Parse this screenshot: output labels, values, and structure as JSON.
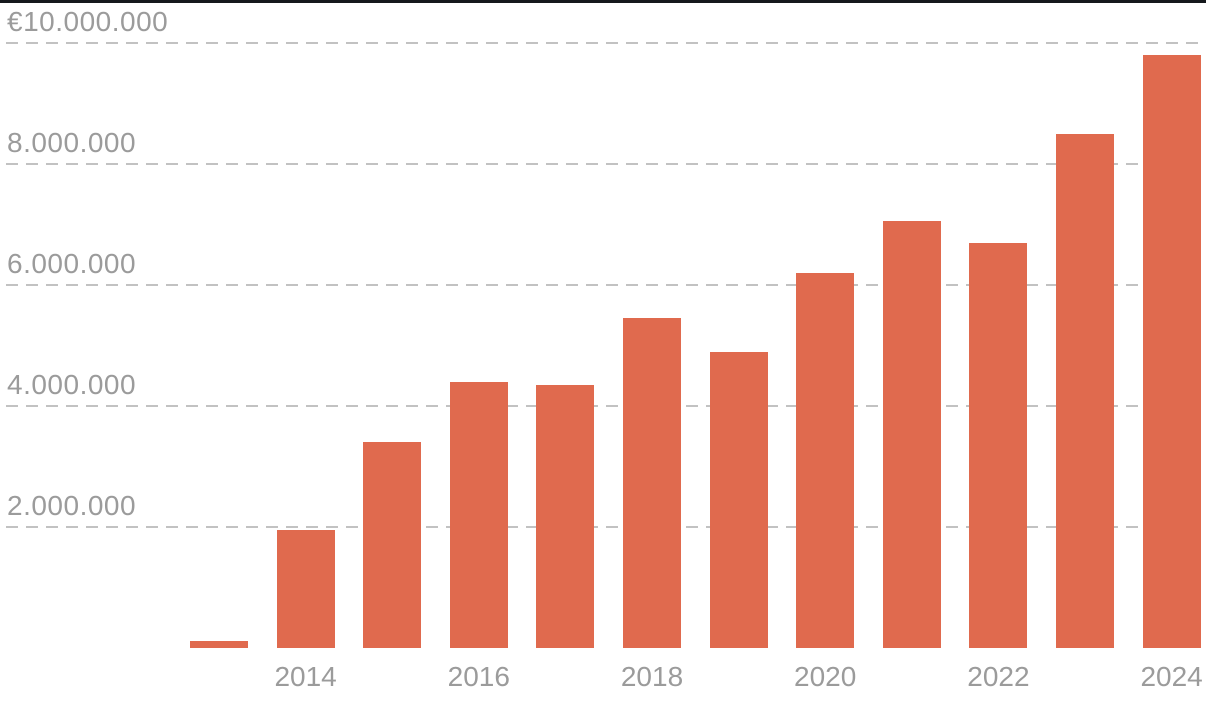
{
  "chart_data": {
    "type": "bar",
    "categories": [
      "2013",
      "2014",
      "2015",
      "2016",
      "2017",
      "2018",
      "2019",
      "2020",
      "2021",
      "2022",
      "2023",
      "2024"
    ],
    "values": [
      120000,
      1950000,
      3400000,
      4400000,
      4350000,
      5450000,
      4900000,
      6200000,
      7050000,
      6700000,
      8500000,
      9800000
    ],
    "title": "",
    "xlabel": "",
    "ylabel": "",
    "ylim": [
      0,
      10000000
    ],
    "grid": "horizontal-dashed",
    "legend": "none",
    "bar_color": "#e06a4e",
    "gridline_color": "#c2c2c2",
    "axis_label_color": "#9b9b9b",
    "baseline_color": "#15181c",
    "y_ticks": [
      {
        "value": 10000000,
        "label": "€10.000.000"
      },
      {
        "value": 8000000,
        "label": "8.000.000"
      },
      {
        "value": 6000000,
        "label": "6.000.000"
      },
      {
        "value": 4000000,
        "label": "4.000.000"
      },
      {
        "value": 2000000,
        "label": "2.000.000"
      }
    ],
    "x_tick_labels": [
      "2014",
      "2016",
      "2018",
      "2020",
      "2022",
      "2024"
    ]
  }
}
